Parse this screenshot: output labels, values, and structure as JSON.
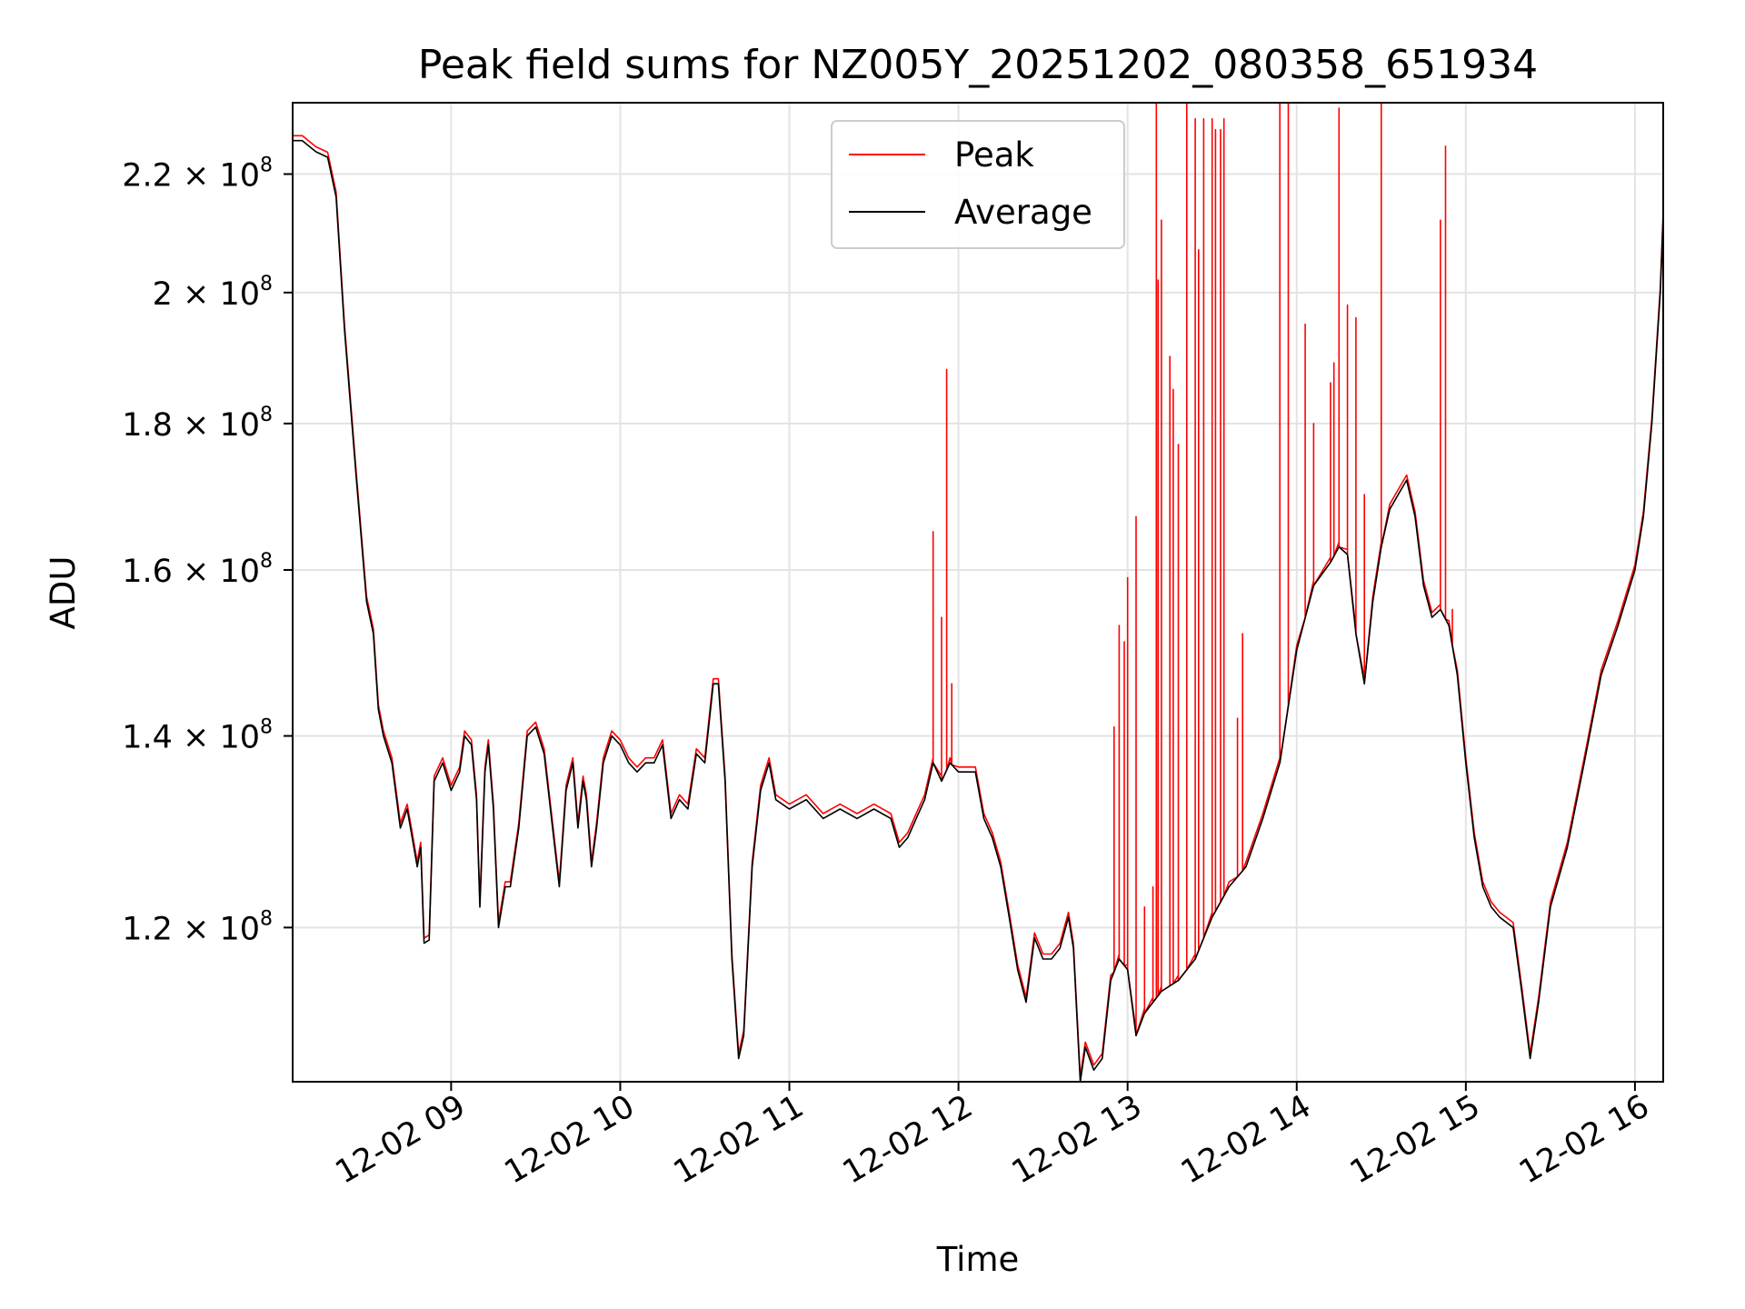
{
  "chart_data": {
    "type": "line",
    "title": "Peak field sums for NZ005Y_20251202_080358_651934",
    "xlabel": "Time",
    "ylabel": "ADU",
    "y_scale": "log",
    "ylim": [
      106000000,
      233000000
    ],
    "xlim_hours": [
      8.063,
      16.167
    ],
    "grid": true,
    "legend_position": "upper-center",
    "x_ticks": [
      {
        "label": "12-02 09",
        "hour": 9
      },
      {
        "label": "12-02 10",
        "hour": 10
      },
      {
        "label": "12-02 11",
        "hour": 11
      },
      {
        "label": "12-02 12",
        "hour": 12
      },
      {
        "label": "12-02 13",
        "hour": 13
      },
      {
        "label": "12-02 14",
        "hour": 14
      },
      {
        "label": "12-02 15",
        "hour": 15
      },
      {
        "label": "12-02 16",
        "hour": 16
      }
    ],
    "y_ticks": [
      {
        "mantissa": "1.2",
        "exp": "8",
        "value": 120000000
      },
      {
        "mantissa": "1.4",
        "exp": "8",
        "value": 140000000
      },
      {
        "mantissa": "1.6",
        "exp": "8",
        "value": 160000000
      },
      {
        "mantissa": "1.8",
        "exp": "8",
        "value": 180000000
      },
      {
        "mantissa": "2",
        "exp": "8",
        "value": 200000000
      },
      {
        "mantissa": "2.2",
        "exp": "8",
        "value": 220000000
      }
    ],
    "series": [
      {
        "name": "Peak",
        "color": "#ff0000"
      },
      {
        "name": "Average",
        "color": "#000000"
      }
    ],
    "average_points": [
      [
        8.06,
        226
      ],
      [
        8.12,
        226
      ],
      [
        8.2,
        224
      ],
      [
        8.27,
        223
      ],
      [
        8.32,
        216
      ],
      [
        8.37,
        194
      ],
      [
        8.44,
        172
      ],
      [
        8.5,
        156
      ],
      [
        8.54,
        152
      ],
      [
        8.57,
        143
      ],
      [
        8.6,
        140
      ],
      [
        8.65,
        137
      ],
      [
        8.7,
        130
      ],
      [
        8.74,
        132
      ],
      [
        8.76,
        130
      ],
      [
        8.8,
        126
      ],
      [
        8.82,
        128
      ],
      [
        8.84,
        118.5
      ],
      [
        8.87,
        118.8
      ],
      [
        8.9,
        135
      ],
      [
        8.95,
        137
      ],
      [
        9.0,
        134
      ],
      [
        9.05,
        136
      ],
      [
        9.08,
        140
      ],
      [
        9.12,
        139
      ],
      [
        9.15,
        133
      ],
      [
        9.17,
        122
      ],
      [
        9.2,
        136
      ],
      [
        9.22,
        139
      ],
      [
        9.25,
        132
      ],
      [
        9.28,
        120
      ],
      [
        9.32,
        124
      ],
      [
        9.35,
        124
      ],
      [
        9.4,
        130
      ],
      [
        9.45,
        140
      ],
      [
        9.5,
        141
      ],
      [
        9.55,
        138
      ],
      [
        9.6,
        130
      ],
      [
        9.64,
        124
      ],
      [
        9.68,
        134
      ],
      [
        9.72,
        137
      ],
      [
        9.75,
        130
      ],
      [
        9.78,
        135
      ],
      [
        9.8,
        133
      ],
      [
        9.83,
        126
      ],
      [
        9.86,
        130
      ],
      [
        9.9,
        137
      ],
      [
        9.95,
        140
      ],
      [
        10.0,
        139
      ],
      [
        10.05,
        137
      ],
      [
        10.1,
        136
      ],
      [
        10.15,
        137
      ],
      [
        10.2,
        137
      ],
      [
        10.25,
        139
      ],
      [
        10.3,
        131
      ],
      [
        10.35,
        133
      ],
      [
        10.4,
        132
      ],
      [
        10.45,
        138
      ],
      [
        10.5,
        137
      ],
      [
        10.55,
        146
      ],
      [
        10.58,
        146
      ],
      [
        10.62,
        135
      ],
      [
        10.66,
        117
      ],
      [
        10.7,
        108
      ],
      [
        10.73,
        110
      ],
      [
        10.78,
        126
      ],
      [
        10.83,
        134
      ],
      [
        10.88,
        137
      ],
      [
        10.92,
        133
      ],
      [
        11.0,
        132
      ],
      [
        11.1,
        133
      ],
      [
        11.2,
        131
      ],
      [
        11.3,
        132
      ],
      [
        11.4,
        131
      ],
      [
        11.5,
        132
      ],
      [
        11.6,
        131
      ],
      [
        11.65,
        128
      ],
      [
        11.7,
        129
      ],
      [
        11.75,
        131
      ],
      [
        11.8,
        133
      ],
      [
        11.85,
        137
      ],
      [
        11.9,
        135
      ],
      [
        11.95,
        137
      ],
      [
        12.0,
        136
      ],
      [
        12.1,
        136
      ],
      [
        12.15,
        131
      ],
      [
        12.2,
        129
      ],
      [
        12.25,
        126
      ],
      [
        12.3,
        121
      ],
      [
        12.35,
        116
      ],
      [
        12.4,
        113
      ],
      [
        12.45,
        119
      ],
      [
        12.5,
        117
      ],
      [
        12.55,
        117
      ],
      [
        12.6,
        118
      ],
      [
        12.65,
        121
      ],
      [
        12.68,
        118
      ],
      [
        12.72,
        106
      ],
      [
        12.75,
        109
      ],
      [
        12.8,
        107
      ],
      [
        12.85,
        108
      ],
      [
        12.9,
        115
      ],
      [
        12.95,
        117
      ],
      [
        13.0,
        116
      ],
      [
        13.05,
        110
      ],
      [
        13.1,
        112
      ],
      [
        13.15,
        113
      ],
      [
        13.2,
        114
      ],
      [
        13.3,
        115
      ],
      [
        13.4,
        117
      ],
      [
        13.5,
        121
      ],
      [
        13.6,
        124
      ],
      [
        13.7,
        126
      ],
      [
        13.8,
        131
      ],
      [
        13.9,
        137
      ],
      [
        14.0,
        150
      ],
      [
        14.1,
        158
      ],
      [
        14.2,
        161
      ],
      [
        14.25,
        163
      ],
      [
        14.3,
        162
      ],
      [
        14.35,
        152
      ],
      [
        14.4,
        146
      ],
      [
        14.45,
        156
      ],
      [
        14.5,
        163
      ],
      [
        14.55,
        168
      ],
      [
        14.6,
        170
      ],
      [
        14.65,
        172
      ],
      [
        14.7,
        167
      ],
      [
        14.75,
        158
      ],
      [
        14.8,
        154
      ],
      [
        14.85,
        155
      ],
      [
        14.9,
        153
      ],
      [
        14.95,
        147
      ],
      [
        15.0,
        137
      ],
      [
        15.05,
        129
      ],
      [
        15.1,
        124
      ],
      [
        15.15,
        122
      ],
      [
        15.2,
        121
      ],
      [
        15.28,
        120
      ],
      [
        15.33,
        114
      ],
      [
        15.38,
        108
      ],
      [
        15.43,
        113
      ],
      [
        15.5,
        122
      ],
      [
        15.6,
        128
      ],
      [
        15.7,
        137
      ],
      [
        15.8,
        147
      ],
      [
        15.9,
        153
      ],
      [
        16.0,
        160
      ],
      [
        16.05,
        167
      ],
      [
        16.1,
        180
      ],
      [
        16.15,
        200
      ],
      [
        16.17,
        215
      ]
    ],
    "peak_spikes": [
      [
        11.85,
        165
      ],
      [
        11.9,
        154
      ],
      [
        11.93,
        188
      ],
      [
        11.96,
        146
      ],
      [
        12.92,
        141
      ],
      [
        12.95,
        153
      ],
      [
        12.98,
        151
      ],
      [
        13.0,
        159
      ],
      [
        13.05,
        167
      ],
      [
        13.1,
        122
      ],
      [
        13.15,
        124
      ],
      [
        13.17,
        233
      ],
      [
        13.18,
        202
      ],
      [
        13.2,
        212
      ],
      [
        13.25,
        190
      ],
      [
        13.27,
        185
      ],
      [
        13.3,
        177
      ],
      [
        13.35,
        233
      ],
      [
        13.4,
        230
      ],
      [
        13.42,
        207
      ],
      [
        13.45,
        230
      ],
      [
        13.5,
        230
      ],
      [
        13.52,
        228
      ],
      [
        13.55,
        228
      ],
      [
        13.57,
        230
      ],
      [
        13.65,
        142
      ],
      [
        13.68,
        152
      ],
      [
        13.9,
        233
      ],
      [
        13.95,
        233
      ],
      [
        14.05,
        195
      ],
      [
        14.1,
        180
      ],
      [
        14.2,
        186
      ],
      [
        14.22,
        189
      ],
      [
        14.25,
        232
      ],
      [
        14.3,
        198
      ],
      [
        14.35,
        196
      ],
      [
        14.4,
        170
      ],
      [
        14.5,
        233
      ],
      [
        14.85,
        212
      ],
      [
        14.88,
        225
      ],
      [
        14.92,
        155
      ]
    ]
  }
}
